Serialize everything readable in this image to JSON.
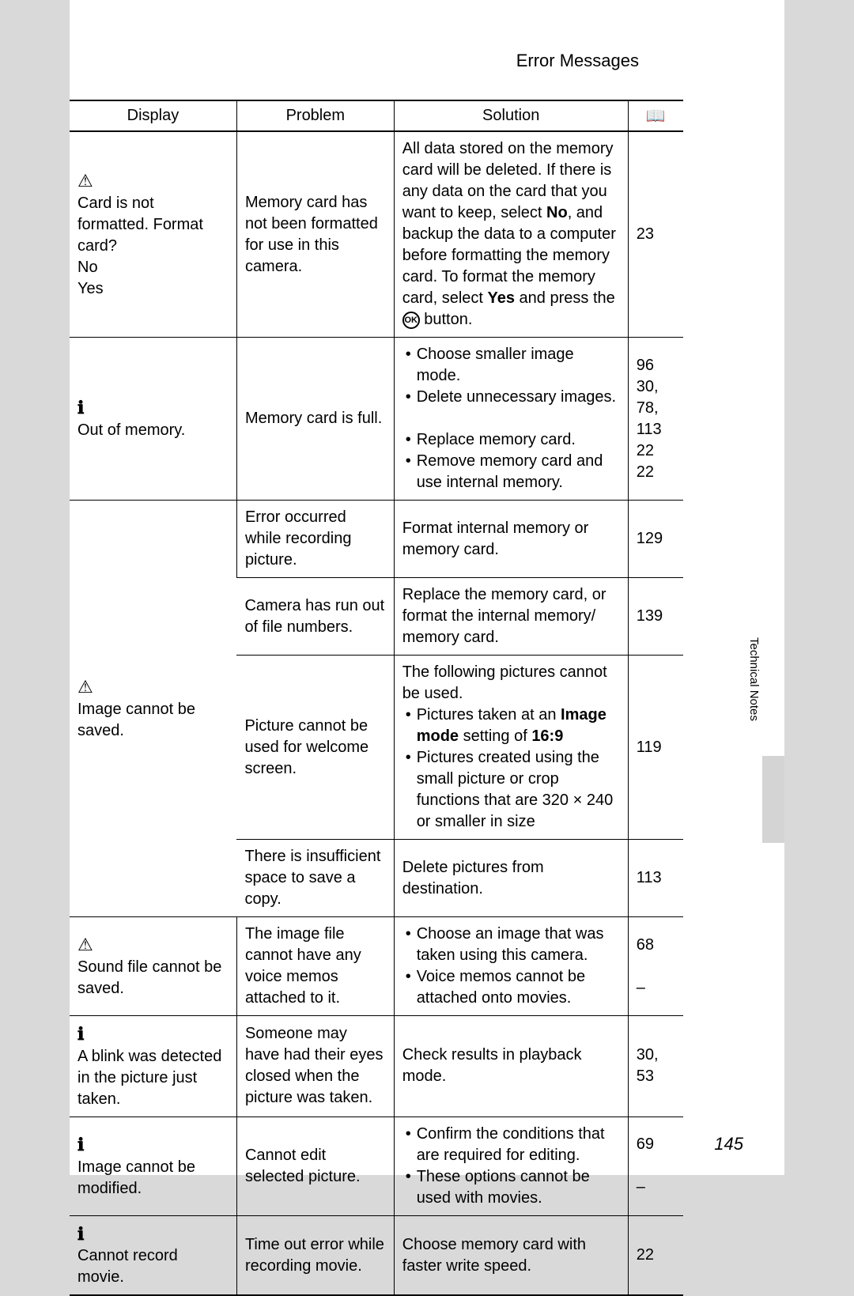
{
  "header": {
    "title": "Error Messages"
  },
  "table": {
    "headers": {
      "display": "Display",
      "problem": "Problem",
      "solution": "Solution",
      "ref_icon": "book"
    },
    "rows": [
      {
        "display_icon": "warn",
        "display": "Card is not formatted. Format card?\nNo\nYes",
        "problem": "Memory card has not been formatted for use in this camera.",
        "solution_html": "All data stored on the memory card will be deleted. If there is any data on the card that you want to keep, select <b>No</b>, and backup the data to a computer before formatting the memory card. To format the memory card, select <b>Yes</b> and press the <span class='ok-btn'>OK</span> button.",
        "ref": "23"
      },
      {
        "display_icon": "info",
        "display": "Out of memory.",
        "problem": "Memory card is full.",
        "solution_list": [
          "Choose smaller image mode.",
          "Delete unnecessary images.",
          "",
          "Replace memory card.",
          "Remove memory card and use internal memory."
        ],
        "ref": "96\n30, 78, 113\n22\n22"
      },
      {
        "display_icon": "warn",
        "display": "Image cannot be saved.",
        "display_rowspan": 4,
        "problem": "Error occurred while recording picture.",
        "solution": "Format internal memory or memory card.",
        "ref": "129"
      },
      {
        "problem": "Camera has run out of file numbers.",
        "solution": "Replace the memory card, or format the internal memory/ memory card.",
        "ref": "139"
      },
      {
        "problem": "Picture cannot be used for welcome screen.",
        "solution_html": "The following pictures cannot be used.<ul class='sol'><li>Pictures taken at an <b>Image mode</b> setting of <b>16:9</b></li><li>Pictures created using the small picture or crop functions that are 320 × 240 or smaller in size</li></ul>",
        "ref": "119"
      },
      {
        "problem": "There is insufficient space to save a copy.",
        "solution": "Delete pictures from destination.",
        "ref": "113"
      },
      {
        "display_icon": "warn",
        "display": "Sound file cannot be saved.",
        "problem": "The image file cannot have any voice memos attached to it.",
        "solution_list": [
          "Choose an image that was taken using this camera.",
          "Voice memos cannot be attached onto movies."
        ],
        "ref": "68\n\n–"
      },
      {
        "display_icon": "info",
        "display": "A blink was detected in the picture just taken.",
        "problem": "Someone may have had their eyes closed when the picture was taken.",
        "solution": "Check results in playback mode.",
        "ref": "30, 53"
      },
      {
        "display_icon": "info",
        "display": "Image cannot be modified.",
        "problem": "Cannot edit selected picture.",
        "solution_list": [
          "Confirm the conditions that are required for editing.",
          "These options cannot be used with movies."
        ],
        "ref": "69\n\n–"
      },
      {
        "display_icon": "info",
        "display": "Cannot record movie.",
        "problem": "Time out error while recording movie.",
        "solution": "Choose memory card with faster write speed.",
        "ref": "22",
        "last": true
      }
    ]
  },
  "side_label": "Technical Notes",
  "page_number": "145"
}
